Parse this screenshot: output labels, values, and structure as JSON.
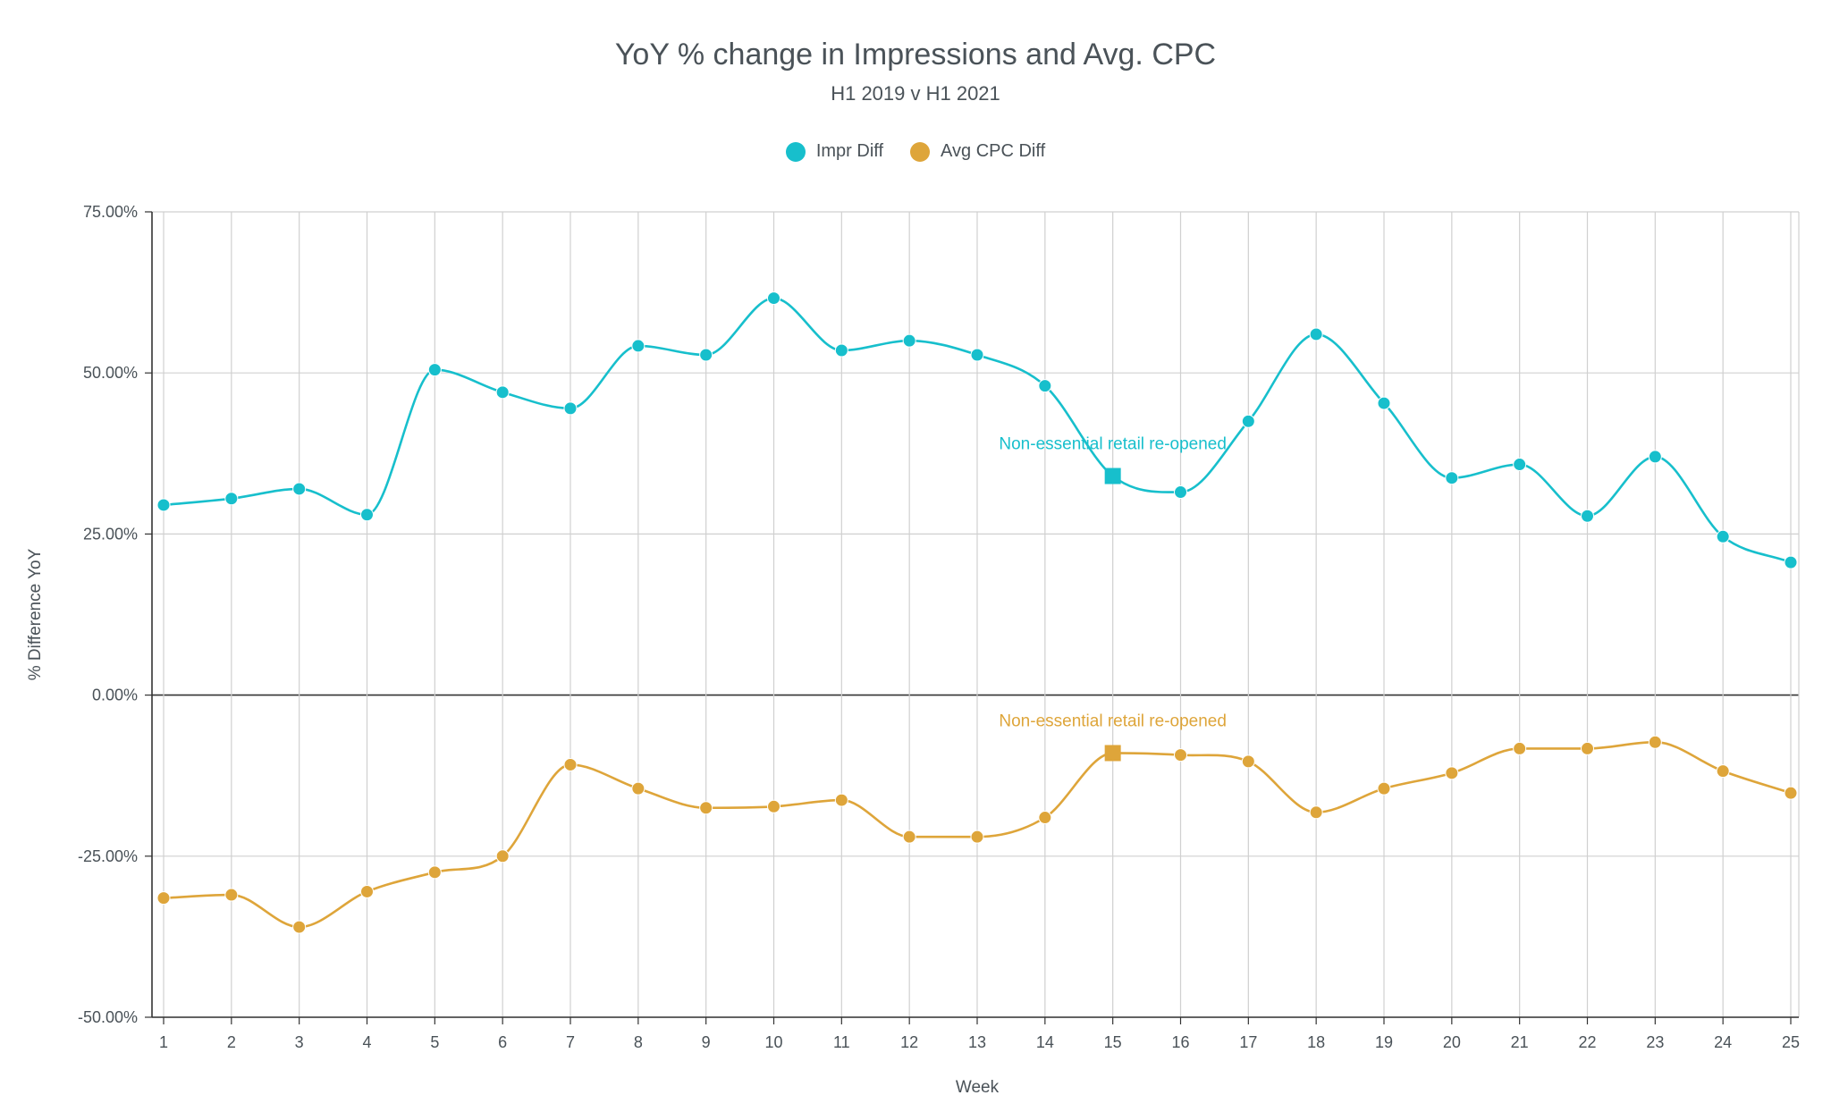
{
  "chart_data": {
    "type": "line",
    "title": "YoY % change in Impressions and Avg. CPC",
    "subtitle": "H1 2019 v H1 2021",
    "xlabel": "Week",
    "ylabel": "% Difference YoY",
    "x": [
      1,
      2,
      3,
      4,
      5,
      6,
      7,
      8,
      9,
      10,
      11,
      12,
      13,
      14,
      15,
      16,
      17,
      18,
      19,
      20,
      21,
      22,
      23,
      24,
      25
    ],
    "x_tick_labels": [
      "1",
      "2",
      "3",
      "4",
      "5",
      "6",
      "7",
      "8",
      "9",
      "10",
      "11",
      "12",
      "13",
      "14",
      "15",
      "16",
      "17",
      "18",
      "19",
      "20",
      "21",
      "22",
      "23",
      "24",
      "25"
    ],
    "ylim": [
      -50,
      75
    ],
    "y_ticks": [
      75,
      50,
      25,
      0,
      -25,
      -50
    ],
    "y_tick_labels": [
      "75.00%",
      "50.00%",
      "25.00%",
      "0.00%",
      "-25.00%",
      "-50.00%"
    ],
    "grid": true,
    "legend_position": "top-center",
    "series": [
      {
        "name": "Impr Diff",
        "color": "#17bfcc",
        "values": [
          29.5,
          30.5,
          32.0,
          28.0,
          50.5,
          47.0,
          44.5,
          54.2,
          52.8,
          61.6,
          53.5,
          55.0,
          52.8,
          48.0,
          34.0,
          31.5,
          42.5,
          56.0,
          45.3,
          33.7,
          35.8,
          27.8,
          37.0,
          24.6,
          20.6
        ]
      },
      {
        "name": "Avg CPC Diff",
        "color": "#dea53a",
        "values": [
          -31.5,
          -31.0,
          -36.0,
          -30.5,
          -27.5,
          -25.0,
          -10.8,
          -14.5,
          -17.5,
          -17.3,
          -16.3,
          -22.0,
          -22.0,
          -19.0,
          -9.0,
          -9.3,
          -10.3,
          -18.2,
          -14.5,
          -12.1,
          -8.3,
          -8.3,
          -7.3,
          -11.8,
          -15.2
        ]
      }
    ],
    "annotations": [
      {
        "series": "Impr Diff",
        "x": 15,
        "text": "Non-essential retail re-opened",
        "marker": "square"
      },
      {
        "series": "Avg CPC Diff",
        "x": 15,
        "text": "Non-essential retail re-opened",
        "marker": "square"
      }
    ]
  }
}
